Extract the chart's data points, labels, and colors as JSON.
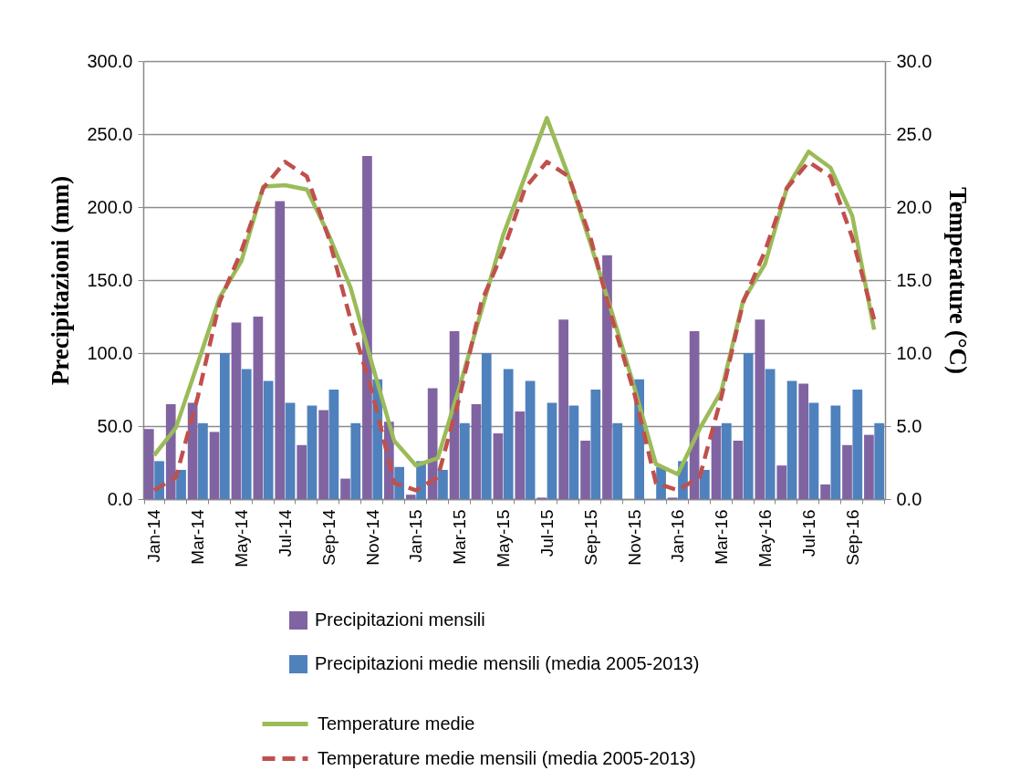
{
  "chart_data": {
    "type": "bar",
    "ylabel": "Precipitazioni (mm)",
    "y2label": "Temperature (°C)",
    "categories": [
      "Jan-14",
      null,
      "Mar-14",
      null,
      "May-14",
      null,
      "Jul-14",
      null,
      "Sep-14",
      null,
      "Nov-14",
      null,
      "Jan-15",
      null,
      "Mar-15",
      null,
      "May-15",
      null,
      "Jul-15",
      null,
      "Sep-15",
      null,
      "Nov-15",
      null,
      "Jan-16",
      null,
      "Mar-16",
      null,
      "May-16",
      null,
      "Jul-16",
      null,
      "Sep-16",
      null
    ],
    "series": [
      {
        "name": "Precipitazioni mensili",
        "type": "bar",
        "color": "#8064a2",
        "values": [
          48,
          65,
          66,
          46,
          121,
          125,
          204,
          37,
          61,
          14,
          235,
          53,
          3,
          76,
          115,
          65,
          45,
          60,
          1,
          123,
          40,
          167,
          0,
          0,
          1,
          115,
          50,
          40,
          123,
          23,
          79,
          10,
          37,
          44
        ]
      },
      {
        "name": "Precipitazioni medie mensili (media 2005-2013)",
        "type": "bar",
        "color": "#4f81bd",
        "values": [
          26,
          20,
          52,
          100,
          89,
          81,
          66,
          64,
          75,
          52,
          82,
          22,
          26,
          20,
          52,
          100,
          89,
          81,
          66,
          64,
          75,
          52,
          82,
          22,
          26,
          20,
          52,
          100,
          89,
          81,
          66,
          64,
          75,
          52
        ]
      },
      {
        "name": "Temperature medie",
        "type": "line",
        "axis": "y2",
        "color": "#9bbb59",
        "line_style": "solid",
        "values": [
          3.0,
          4.9,
          9.3,
          13.8,
          16.3,
          21.4,
          21.5,
          21.2,
          18.1,
          14.5,
          9.2,
          4.0,
          2.3,
          2.8,
          7.7,
          12.9,
          18.1,
          22.1,
          26.1,
          22.1,
          17.5,
          12.7,
          7.7,
          2.4,
          1.7,
          4.8,
          7.4,
          13.6,
          16.1,
          21.3,
          23.8,
          22.7,
          19.4,
          11.6
        ]
      },
      {
        "name": "Temperature medie mensili (media 2005-2013)",
        "type": "line",
        "axis": "y2",
        "color": "#c0504d",
        "line_style": "dashed",
        "values": [
          0.6,
          1.5,
          7.0,
          13.5,
          17.0,
          21.3,
          23.1,
          22.1,
          17.9,
          12.3,
          7.3,
          1.1,
          0.6,
          1.5,
          7.0,
          13.5,
          17.0,
          21.3,
          23.1,
          22.1,
          17.9,
          12.3,
          7.3,
          1.1,
          0.6,
          1.5,
          7.0,
          13.5,
          17.0,
          21.3,
          23.1,
          22.1,
          17.9,
          12.3
        ]
      }
    ],
    "ylim": [
      0,
      300
    ],
    "yticks": [
      {
        "value": 0,
        "label": "0.0"
      },
      {
        "value": 50,
        "label": "50.0"
      },
      {
        "value": 100,
        "label": "100.0"
      },
      {
        "value": 150,
        "label": "150.0"
      },
      {
        "value": 200,
        "label": "200.0"
      },
      {
        "value": 250,
        "label": "250.0"
      },
      {
        "value": 300,
        "label": "300.0"
      }
    ],
    "y2lim": [
      0,
      30
    ],
    "y2ticks": [
      {
        "value": 0,
        "label": "0.0"
      },
      {
        "value": 5,
        "label": "5.0"
      },
      {
        "value": 10,
        "label": "10.0"
      },
      {
        "value": 15,
        "label": "15.0"
      },
      {
        "value": 20,
        "label": "20.0"
      },
      {
        "value": 25,
        "label": "25.0"
      },
      {
        "value": 30,
        "label": "30.0"
      }
    ],
    "grid": "y",
    "legend": "bottom",
    "marker": "none"
  }
}
